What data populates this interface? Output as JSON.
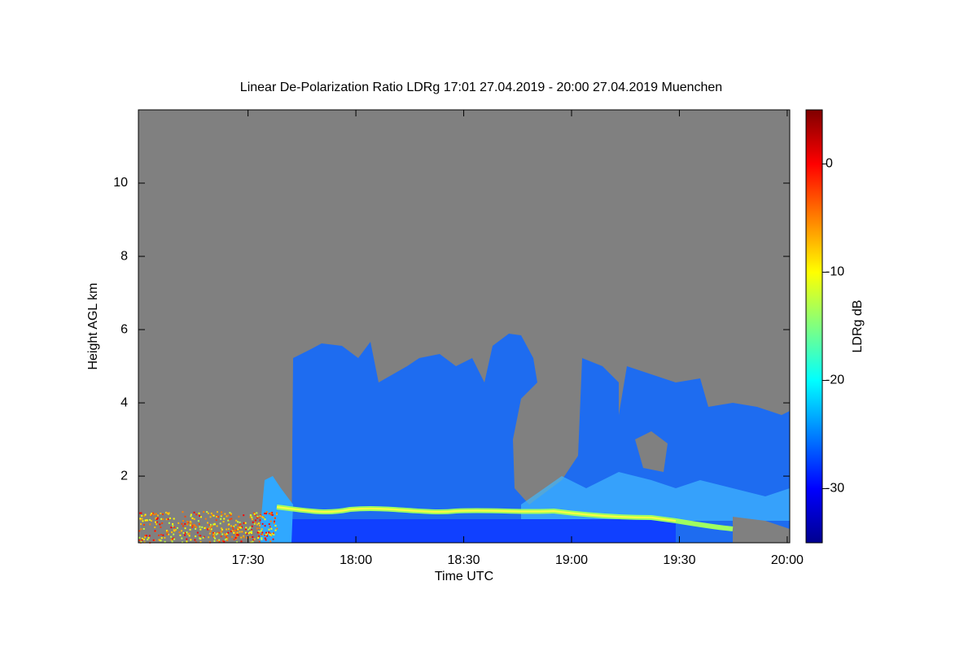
{
  "chart_data": {
    "type": "heatmap",
    "title": "Linear De-Polarization Ratio LDRg   17:01 27.04.2019 - 20:00 27.04.2019 Muenchen",
    "x_label": "Time UTC",
    "y_label": "Height AGL km",
    "colorbar_label": "LDRg dB",
    "xlim": [
      1019.5,
      1200.7
    ],
    "xticks": [
      {
        "value": 1050,
        "label": "17:30"
      },
      {
        "value": 1080,
        "label": "18:00"
      },
      {
        "value": 1110,
        "label": "18:30"
      },
      {
        "value": 1140,
        "label": "19:00"
      },
      {
        "value": 1170,
        "label": "19:30"
      },
      {
        "value": 1200,
        "label": "20:00"
      }
    ],
    "ylim": [
      0.18,
      12
    ],
    "yticks": [
      2,
      4,
      6,
      8,
      10
    ],
    "clim": [
      -35,
      5
    ],
    "cticks": [
      0,
      -10,
      -20,
      -30
    ],
    "colormap": [
      "#00008f",
      "#0000ff",
      "#0080ff",
      "#00ffff",
      "#80ff80",
      "#ffff00",
      "#ff8000",
      "#ff0000",
      "#800000"
    ],
    "background": "#808080"
  }
}
